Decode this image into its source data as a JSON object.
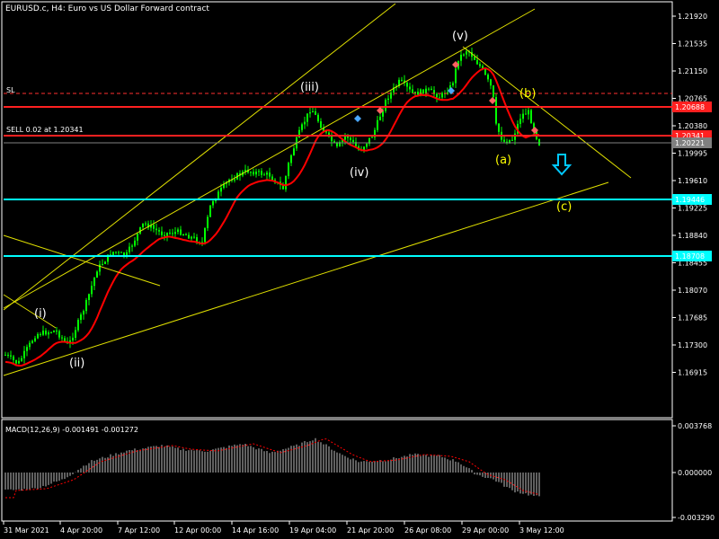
{
  "window": {
    "title": "EURUSD.c, H4:  Euro vs US Dollar Forward contract"
  },
  "price_axis": {
    "ticks": [
      "1.21920",
      "1.21535",
      "1.21150",
      "1.20765",
      "1.20380",
      "1.19995",
      "1.19610",
      "1.19225",
      "1.18840",
      "1.18455",
      "1.18070",
      "1.17685",
      "1.17300",
      "1.16915"
    ],
    "badges": [
      "1.20688",
      "1.20341",
      "1.20221",
      "1.19446",
      "1.18708"
    ]
  },
  "time_axis": {
    "ticks": [
      "31 Mar 2021",
      "4 Apr 20:00",
      "7 Apr 12:00",
      "12 Apr 00:00",
      "14 Apr 16:00",
      "19 Apr 04:00",
      "21 Apr 20:00",
      "26 Apr 08:00",
      "29 Apr 00:00",
      "3 May 12:00"
    ]
  },
  "trade_lines": {
    "sl_label": "SL",
    "order_label": "SELL 0.02 at 1.20341"
  },
  "wave_labels": {
    "i": "(i)",
    "ii": "(ii)",
    "iii": "(iii)",
    "iv": "(iv)",
    "v": "(v)",
    "a": "(a)",
    "b": "(b)",
    "c": "(c)"
  },
  "indicator": {
    "title": "MACD(12,26,9) -0.001491 -0.001272",
    "ticks": [
      "0.003768",
      "0.000000",
      "-0.003290"
    ]
  },
  "colors": {
    "background": "#000000",
    "candles": "#00ff00",
    "ma_line": "#ff0000",
    "sl_line": "#ff2020",
    "support_line": "#00ffff",
    "trendline": "#ffff00",
    "wave_white": "#ffffff",
    "wave_yellow": "#ffff00",
    "arrow": "#00c8ff",
    "macd_hist": "#c0c0c0",
    "macd_signal": "#ff0000"
  },
  "icons": {
    "down_arrow": "down-arrow-icon",
    "buy_marker": "buy-marker-icon",
    "sell_marker": "sell-marker-icon"
  }
}
